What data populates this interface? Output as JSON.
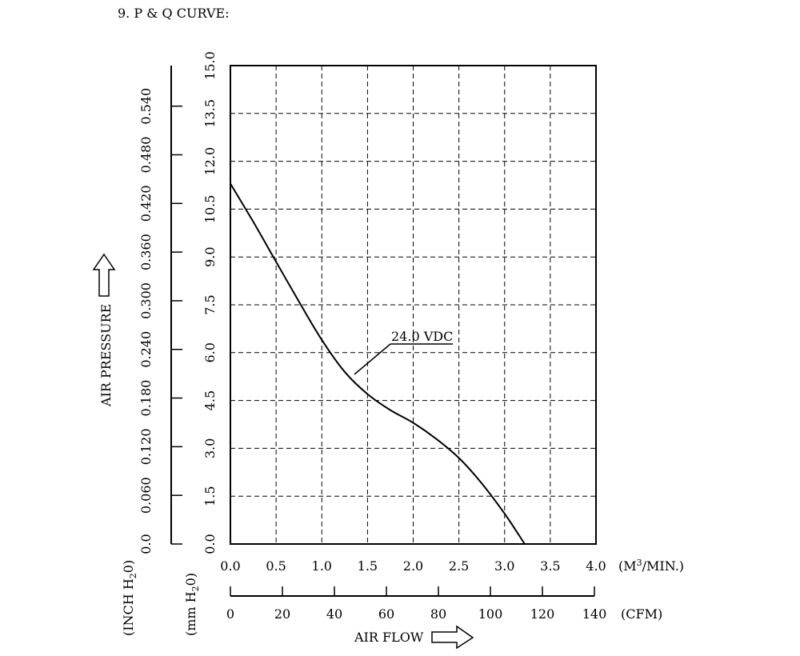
{
  "title": "9. P & Q CURVE:",
  "chart_data": {
    "type": "line",
    "x_axis": {
      "label": "AIR FLOW",
      "primary_unit": "(M3/MIN.)",
      "primary_range": [
        0,
        4.0
      ],
      "primary_ticks": [
        "0.0",
        "0.5",
        "1.0",
        "1.5",
        "2.0",
        "2.5",
        "3.0",
        "3.5",
        "4.0"
      ],
      "secondary_unit": "(CFM)",
      "secondary_range": [
        0,
        140
      ],
      "secondary_ticks": [
        "0",
        "20",
        "40",
        "60",
        "80",
        "100",
        "120",
        "140"
      ]
    },
    "y_axis": {
      "label": "AIR PRESSURE",
      "primary_unit": "(mm H2O)",
      "primary_range": [
        0,
        15.0
      ],
      "primary_ticks": [
        "0.0",
        "1.5",
        "3.0",
        "4.5",
        "6.0",
        "7.5",
        "9.0",
        "10.5",
        "12.0",
        "13.5",
        "15.0"
      ],
      "secondary_unit": "(INCH H2O)",
      "secondary_range": [
        0,
        0.59
      ],
      "secondary_ticks": [
        "0.0",
        "0.060",
        "0.120",
        "0.180",
        "0.240",
        "0.300",
        "0.360",
        "0.420",
        "0.480",
        "0.540"
      ]
    },
    "grid": true,
    "series": [
      {
        "name": "24.0 VDC",
        "x": [
          0.0,
          0.25,
          0.5,
          0.75,
          1.0,
          1.25,
          1.5,
          1.75,
          2.0,
          2.25,
          2.5,
          2.75,
          3.0,
          3.22
        ],
        "y": [
          11.3,
          10.1,
          8.85,
          7.6,
          6.4,
          5.4,
          4.7,
          4.2,
          3.8,
          3.3,
          2.7,
          1.9,
          0.95,
          0.0
        ]
      }
    ]
  }
}
